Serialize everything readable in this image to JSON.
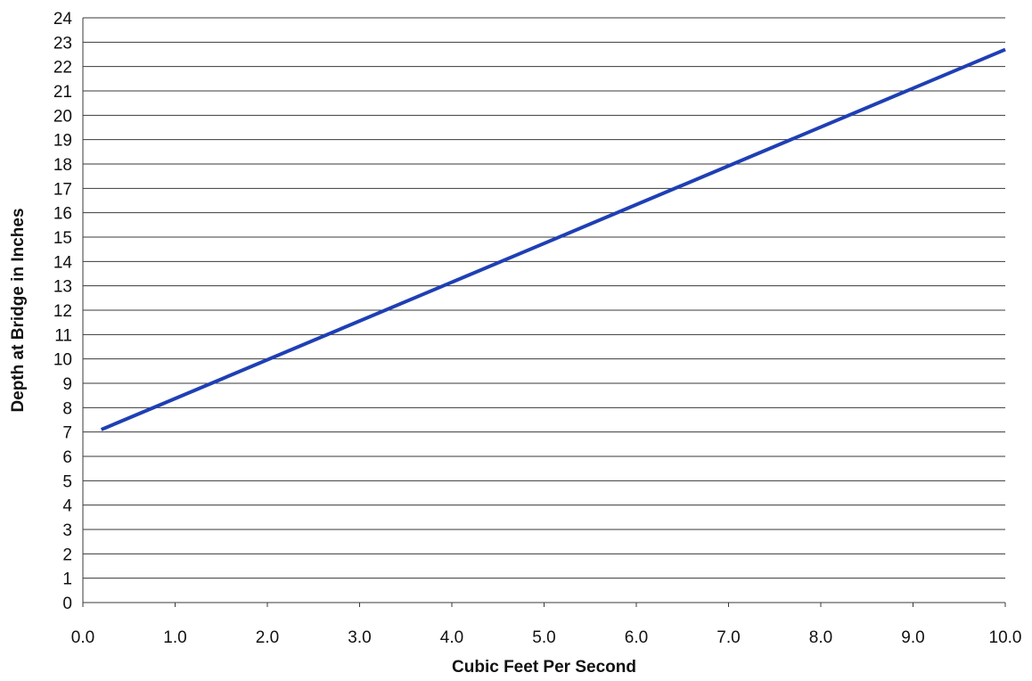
{
  "chart_data": {
    "type": "line",
    "title": "",
    "xlabel": "Cubic Feet Per Second",
    "ylabel": "Depth at Bridge in Inches",
    "xlim": [
      0.0,
      10.0
    ],
    "ylim": [
      0,
      24
    ],
    "x_ticks": [
      "0.0",
      "1.0",
      "2.0",
      "3.0",
      "4.0",
      "5.0",
      "6.0",
      "7.0",
      "8.0",
      "9.0",
      "10.0"
    ],
    "y_ticks": [
      "0",
      "1",
      "2",
      "3",
      "4",
      "5",
      "6",
      "7",
      "8",
      "9",
      "10",
      "11",
      "12",
      "13",
      "14",
      "15",
      "16",
      "17",
      "18",
      "19",
      "20",
      "21",
      "22",
      "23",
      "24"
    ],
    "grid": "horizontal",
    "legend": "none",
    "series": [
      {
        "color": "#1f3fb4",
        "x": [
          0.2,
          10.0
        ],
        "y": [
          7.1,
          22.7
        ]
      }
    ]
  }
}
